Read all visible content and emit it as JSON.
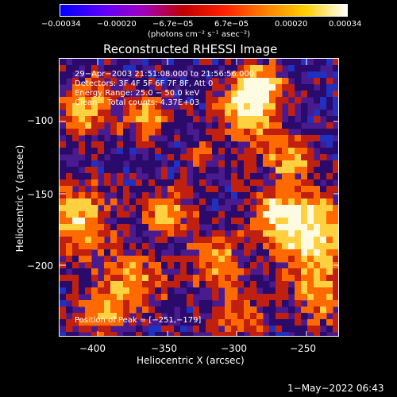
{
  "colorbar": {
    "ticks": [
      "−0.00034",
      "−0.00020",
      "−6.7e−05",
      "6.7e−05",
      "0.00020",
      "0.00034"
    ],
    "units": "(photons cm⁻² s⁻¹ asec⁻²)",
    "colors": [
      "#0000ff",
      "#5a00ff",
      "#a000c0",
      "#c00000",
      "#ff2000",
      "#ff8000",
      "#ffd000",
      "#ffffff"
    ]
  },
  "title": "Reconstructed RHESSI Image",
  "info": {
    "time_range": "29−Apr−2003 21:51:08.000 to 21:56:56.000",
    "detectors": "Detectors: 3F 4F 5F 6F 7F 8F, Att 0",
    "energy": "Energy Range: 25.0 − 50.0 keV",
    "clean": "Clean    Total counts: 4.37E+03"
  },
  "peak": "Position of Peak = [−251,−179]",
  "axes": {
    "xlabel": "Heliocentric X (arcsec)",
    "ylabel": "Heliocentric Y (arcsec)",
    "xticks": [
      "−400",
      "−350",
      "−300",
      "−250"
    ],
    "yticks": [
      "−100",
      "−150",
      "−200"
    ]
  },
  "timestamp": "1−May−2022 06:43",
  "image_colors": {
    "background": "#4a1a8f",
    "deep": "#2a0a6a",
    "blue": "#2030c0",
    "red": "#c02010",
    "orange": "#ff6a00",
    "yellow": "#ffd040",
    "white": "#fffbe0"
  }
}
